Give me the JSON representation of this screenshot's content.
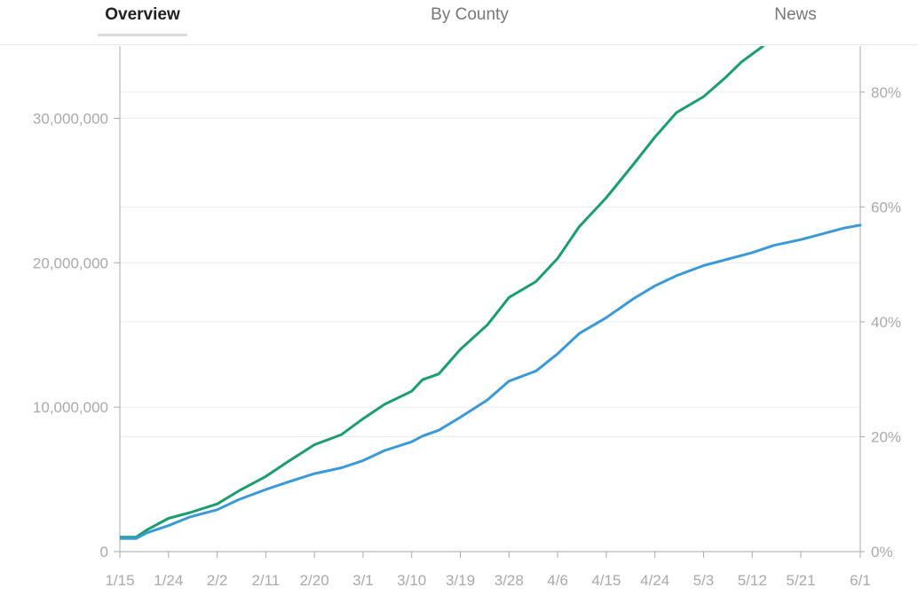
{
  "tabs": [
    {
      "label": "Overview",
      "active": true
    },
    {
      "label": "By County",
      "active": false
    },
    {
      "label": "News",
      "active": false
    }
  ],
  "colors": {
    "series_1": "#1a9e6e",
    "series_2": "#3a9ad9",
    "axis": "#aaaaaa",
    "grid": "#ececec"
  },
  "chart_data": {
    "type": "line",
    "title": "",
    "xlabel": "",
    "ylabel": "",
    "x_ticks": [
      "1/15",
      "1/24",
      "2/2",
      "2/11",
      "2/20",
      "3/1",
      "3/10",
      "3/19",
      "3/28",
      "4/6",
      "4/15",
      "4/24",
      "5/3",
      "5/12",
      "5/21",
      "6/1"
    ],
    "y_left": {
      "ylim": [
        0,
        35000000
      ],
      "ticks": [
        0,
        10000000,
        20000000,
        30000000
      ],
      "tick_labels": [
        "0",
        "10,000,000",
        "20,000,000",
        "30,000,000"
      ]
    },
    "y_right": {
      "ylim": [
        0,
        88
      ],
      "ticks": [
        0,
        20,
        40,
        60,
        80
      ],
      "tick_labels": [
        "0%",
        "20%",
        "40%",
        "60%",
        "80%"
      ]
    },
    "grid": true,
    "legend": "none",
    "series": [
      {
        "axis": "left",
        "x": [
          "1/15",
          "1/18",
          "1/20",
          "1/24",
          "1/28",
          "2/2",
          "2/6",
          "2/11",
          "2/15",
          "2/20",
          "2/25",
          "3/1",
          "3/5",
          "3/10",
          "3/12",
          "3/15",
          "3/19",
          "3/24",
          "3/28",
          "4/2",
          "4/6",
          "4/10",
          "4/15",
          "4/20",
          "4/24",
          "4/28",
          "5/3",
          "5/7",
          "5/10",
          "5/14"
        ],
        "values": [
          1000000,
          1000000,
          1500000,
          2300000,
          2700000,
          3300000,
          4200000,
          5200000,
          6200000,
          7400000,
          8100000,
          9200000,
          10200000,
          11100000,
          11900000,
          12300000,
          14000000,
          15700000,
          17600000,
          18700000,
          20300000,
          22500000,
          24500000,
          26800000,
          28700000,
          30400000,
          31500000,
          32800000,
          33900000,
          35000000
        ]
      },
      {
        "axis": "left",
        "x": [
          "1/15",
          "1/18",
          "1/20",
          "1/24",
          "1/28",
          "2/2",
          "2/6",
          "2/11",
          "2/15",
          "2/20",
          "2/25",
          "3/1",
          "3/5",
          "3/10",
          "3/12",
          "3/15",
          "3/19",
          "3/24",
          "3/28",
          "4/2",
          "4/6",
          "4/10",
          "4/15",
          "4/20",
          "4/24",
          "4/28",
          "5/3",
          "5/7",
          "5/12",
          "5/16",
          "5/21",
          "5/25",
          "5/29",
          "6/1"
        ],
        "values": [
          900000,
          900000,
          1300000,
          1800000,
          2400000,
          2900000,
          3600000,
          4300000,
          4800000,
          5400000,
          5800000,
          6300000,
          7000000,
          7600000,
          8000000,
          8400000,
          9300000,
          10500000,
          11800000,
          12500000,
          13700000,
          15100000,
          16200000,
          17500000,
          18400000,
          19100000,
          19800000,
          20200000,
          20700000,
          21200000,
          21600000,
          22000000,
          22400000,
          22600000
        ]
      }
    ]
  }
}
